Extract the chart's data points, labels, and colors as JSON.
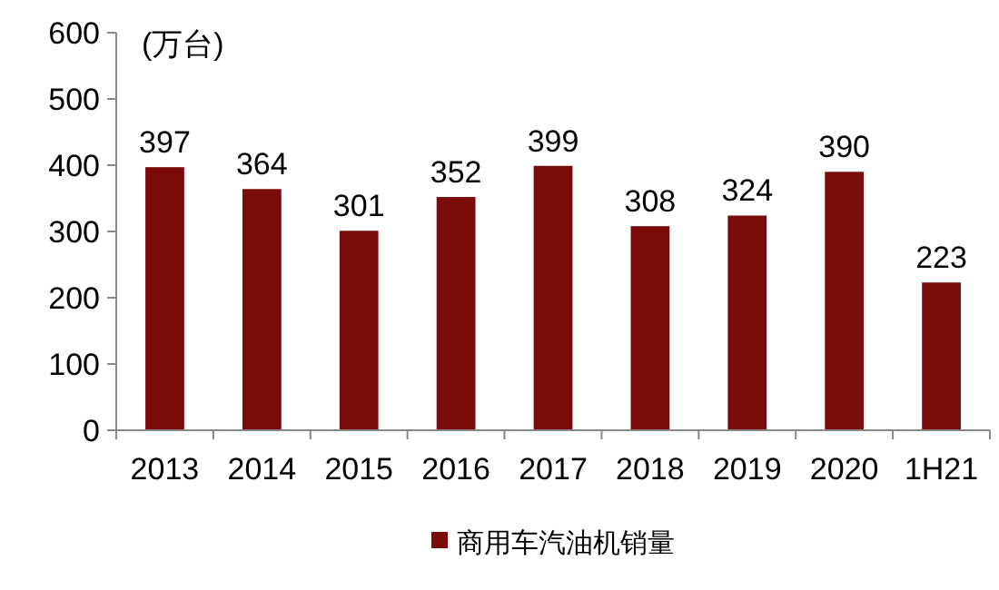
{
  "chart_data": {
    "type": "bar",
    "ylabel": "(万台)",
    "categories": [
      "2013",
      "2014",
      "2015",
      "2016",
      "2017",
      "2018",
      "2019",
      "2020",
      "1H21"
    ],
    "series": [
      {
        "name": "商用车汽油机销量",
        "color": "#7b0a0a",
        "values": [
          397,
          364,
          301,
          352,
          399,
          308,
          324,
          390,
          223
        ]
      }
    ],
    "ylim": [
      0,
      600
    ],
    "yticks": [
      0,
      100,
      200,
      300,
      400,
      500,
      600
    ],
    "data_labels": true,
    "legend": "bottom",
    "grid": false
  }
}
